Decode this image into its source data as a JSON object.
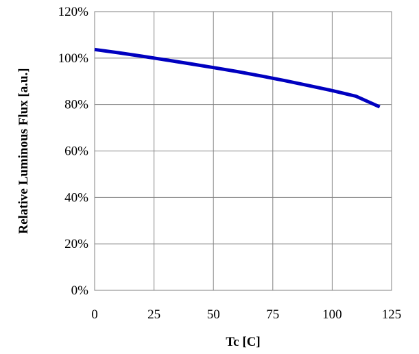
{
  "chart_data": {
    "type": "line",
    "title": "",
    "xlabel": "Tc [C]",
    "ylabel": "Relative  Luminous  Flux [a.u.]",
    "xlim": [
      0,
      125
    ],
    "ylim": [
      0,
      1.2
    ],
    "xticks": [
      0,
      25,
      50,
      75,
      100,
      125
    ],
    "xtick_labels": [
      "0",
      "25",
      "50",
      "75",
      "100",
      "125"
    ],
    "yticks": [
      0,
      0.2,
      0.4,
      0.6,
      0.8,
      1.0,
      1.2
    ],
    "ytick_labels": [
      "0%",
      "20%",
      "40%",
      "60%",
      "80%",
      "100%",
      "120%"
    ],
    "grid": true,
    "legend": "none",
    "series": [
      {
        "color": "#0000c0",
        "x": [
          0,
          10,
          20,
          25,
          30,
          40,
          50,
          60,
          70,
          75,
          80,
          90,
          100,
          110,
          120
        ],
        "y": [
          1.037,
          1.023,
          1.008,
          1.0,
          0.992,
          0.976,
          0.959,
          0.942,
          0.923,
          0.913,
          0.903,
          0.882,
          0.86,
          0.836,
          0.79
        ]
      }
    ]
  }
}
